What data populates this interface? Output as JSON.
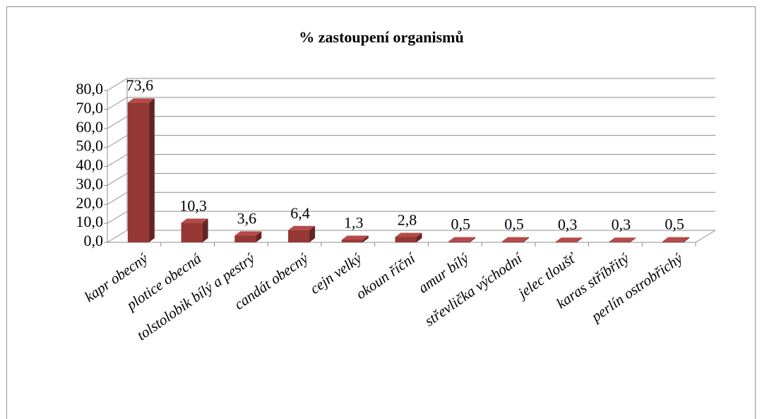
{
  "chart_data": {
    "type": "bar3d",
    "title": "% zastoupení organismů",
    "categories": [
      "kapr obecný",
      "plotice obecná",
      "tolstolobik bílý a pestrý",
      "candát obecný",
      "cejn velký",
      "okoun říční",
      "amur bílý",
      "střevlička východní",
      "jelec tloušť",
      "karas stříbřitý",
      "perlín ostrobřichý"
    ],
    "values": [
      73.6,
      10.3,
      3.6,
      6.4,
      1.3,
      2.8,
      0.5,
      0.5,
      0.3,
      0.3,
      0.5
    ],
    "value_labels": [
      "73,6",
      "10,3",
      "3,6",
      "6,4",
      "1,3",
      "2,8",
      "0,5",
      "0,5",
      "0,3",
      "0,3",
      "0,5"
    ],
    "color": "#953735",
    "ylim": [
      0,
      80
    ],
    "yticks": [
      {
        "value": 0,
        "label": "0,0"
      },
      {
        "value": 10,
        "label": "10,0"
      },
      {
        "value": 20,
        "label": "20,0"
      },
      {
        "value": 30,
        "label": "30,0"
      },
      {
        "value": 40,
        "label": "40,0"
      },
      {
        "value": 50,
        "label": "50,0"
      },
      {
        "value": 60,
        "label": "60,0"
      },
      {
        "value": 70,
        "label": "70,0"
      },
      {
        "value": 80,
        "label": "80,0"
      }
    ],
    "grid": true
  }
}
